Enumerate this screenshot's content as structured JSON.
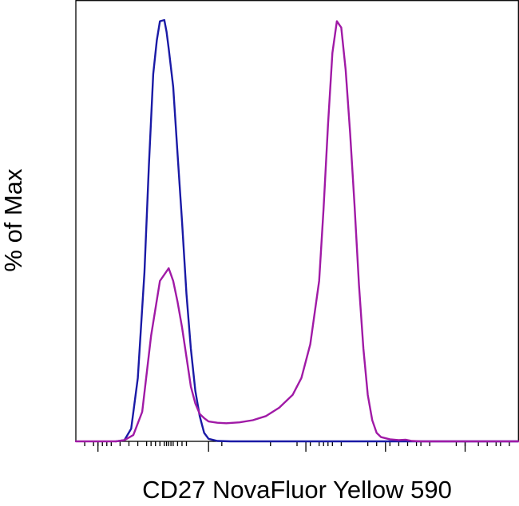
{
  "chart_data": {
    "type": "line",
    "xlabel": "CD27 NovaFluor Yellow 590",
    "ylabel": "% of Max",
    "xlim": [
      0,
      100
    ],
    "ylim": [
      0,
      100
    ],
    "grid": false,
    "x_scale": "biexponential (log-like decades, no tick labels)",
    "minor_ticks": [
      2,
      4,
      5,
      6,
      7,
      8,
      10,
      12,
      14,
      16,
      17,
      18,
      19,
      20,
      20.5,
      21,
      21.5,
      22,
      23,
      24,
      25,
      33,
      44,
      50,
      53,
      55,
      56,
      57,
      58,
      60,
      66,
      68,
      71,
      73,
      75,
      77,
      78,
      80,
      86,
      88,
      91,
      93,
      95,
      96,
      98
    ],
    "major_ticks": [
      5,
      30,
      52,
      70,
      88
    ],
    "series": [
      {
        "color": "#1a1aa6",
        "x": [
          9,
          11,
          12.5,
          14,
          15.5,
          16.5,
          17.5,
          18.3,
          19,
          20,
          20.5,
          21,
          22,
          23,
          24,
          25,
          26,
          27,
          28,
          29,
          30,
          32,
          35,
          100
        ],
        "y": [
          0,
          0.3,
          3,
          15,
          40,
          65,
          87,
          95,
          99.5,
          99.8,
          97,
          93,
          84,
          68,
          52,
          35,
          22,
          12,
          6,
          2,
          0.6,
          0.1,
          0,
          0
        ]
      },
      {
        "color": "#a01aa6",
        "x": [
          0,
          9,
          11,
          13,
          15,
          17,
          19,
          21,
          22,
          23,
          24,
          25,
          26,
          27,
          28,
          29,
          30,
          32,
          34,
          37,
          40,
          43,
          46,
          49,
          51,
          53,
          55,
          56,
          57,
          58,
          59,
          60,
          61,
          62,
          63,
          64,
          65,
          66,
          67,
          68,
          69,
          71,
          73,
          74.5,
          76,
          78,
          80,
          100
        ],
        "y": [
          0,
          0,
          0.3,
          1.5,
          7,
          25,
          38,
          41,
          38,
          33,
          27,
          20,
          13,
          9,
          6.5,
          5.5,
          4.7,
          4.4,
          4.3,
          4.5,
          5,
          6,
          8,
          11,
          15,
          23,
          38,
          55,
          75,
          92,
          99.5,
          98,
          88,
          73,
          56,
          37,
          22,
          11,
          5,
          2,
          1,
          0.5,
          0.3,
          0.4,
          0.1,
          0,
          0,
          0
        ]
      }
    ]
  }
}
